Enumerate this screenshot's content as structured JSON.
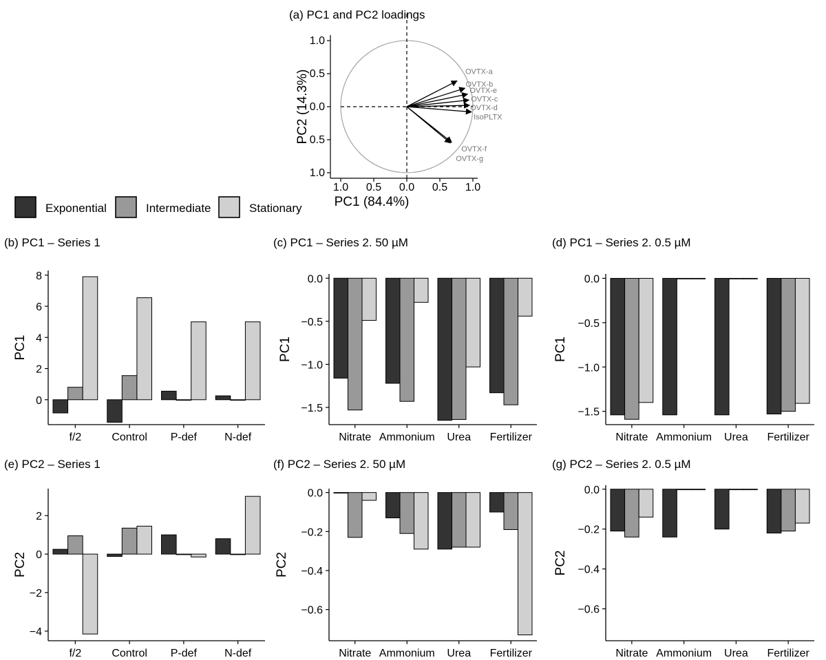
{
  "colors": {
    "exponential": "#333333",
    "intermediate": "#999999",
    "stationary": "#d0d0d0",
    "circle": "#aaaaaa"
  },
  "legend": {
    "placement": "left",
    "entries": [
      "Exponential",
      "Intermediate",
      "Stationary"
    ]
  },
  "chart_data": [
    {
      "id": "a",
      "type": "scatter",
      "title": "(a) PC1 and PC2 loadings",
      "xlabel": "PC1 (84.4%)",
      "ylabel": "PC2 (14.3%)",
      "xlim": [
        -1,
        1
      ],
      "ylim": [
        -1,
        1
      ],
      "xticks": [
        "1.0",
        "0.5",
        "0.0",
        "0.5",
        "1.0"
      ],
      "yticks": [
        "1.0",
        "0.5",
        "0.0",
        "0.5",
        "1.0"
      ],
      "vectors": [
        {
          "name": "OVTX-a",
          "x": 0.76,
          "y": 0.39
        },
        {
          "name": "OVTX-b",
          "x": 0.88,
          "y": 0.28
        },
        {
          "name": "OVTX-e",
          "x": 0.92,
          "y": 0.19
        },
        {
          "name": "OVTX-c",
          "x": 0.94,
          "y": 0.1
        },
        {
          "name": "OVTX-d",
          "x": 0.95,
          "y": 0.02
        },
        {
          "name": "IsoPLTX",
          "x": 0.98,
          "y": -0.08
        },
        {
          "name": "OVTX-f",
          "x": 0.68,
          "y": -0.54
        },
        {
          "name": "OVTX-g",
          "x": 0.66,
          "y": -0.55
        }
      ]
    },
    {
      "id": "b",
      "type": "bar",
      "title": "(b) PC1 – Series 1",
      "ylabel": "PC1",
      "categories": [
        "f/2",
        "Control",
        "P-def",
        "N-def"
      ],
      "ylim": [
        -1.6,
        8.3
      ],
      "yticks": [
        0,
        2,
        4,
        6,
        8
      ],
      "ytick_labels": [
        "0",
        "2",
        "4",
        "6",
        "8"
      ],
      "series": [
        {
          "name": "Exponential",
          "values": [
            -0.85,
            -1.45,
            0.55,
            0.25
          ]
        },
        {
          "name": "Intermediate",
          "values": [
            0.8,
            1.55,
            0,
            0
          ]
        },
        {
          "name": "Stationary",
          "values": [
            7.9,
            6.55,
            5.0,
            5.0
          ]
        }
      ]
    },
    {
      "id": "c",
      "type": "bar",
      "title": "(c) PC1 – Series 2. 50 µM",
      "ylabel": "PC1",
      "categories": [
        "Nitrate",
        "Ammonium",
        "Urea",
        "Fertilizer"
      ],
      "ylim": [
        -1.7,
        0.05
      ],
      "yticks": [
        0,
        -0.5,
        -1,
        -1.5
      ],
      "ytick_labels": [
        "0.0",
        "−0.5",
        "−1.0",
        "−1.5"
      ],
      "series": [
        {
          "name": "Exponential",
          "values": [
            -1.16,
            -1.22,
            -1.65,
            -1.33
          ]
        },
        {
          "name": "Intermediate",
          "values": [
            -1.53,
            -1.43,
            -1.64,
            -1.47
          ]
        },
        {
          "name": "Stationary",
          "values": [
            -0.49,
            -0.28,
            -1.03,
            -0.44
          ]
        }
      ]
    },
    {
      "id": "d",
      "type": "bar",
      "title": "(d) PC1 – Series 2. 0.5 µM",
      "ylabel": "PC1",
      "categories": [
        "Nitrate",
        "Ammonium",
        "Urea",
        "Fertilizer"
      ],
      "ylim": [
        -1.65,
        0.05
      ],
      "yticks": [
        0,
        -0.5,
        -1,
        -1.5
      ],
      "ytick_labels": [
        "0.0",
        "−0.5",
        "−1.0",
        "−1.5"
      ],
      "series": [
        {
          "name": "Exponential",
          "values": [
            -1.54,
            -1.54,
            -1.54,
            -1.53
          ]
        },
        {
          "name": "Intermediate",
          "values": [
            -1.59,
            0,
            0,
            -1.5
          ]
        },
        {
          "name": "Stationary",
          "values": [
            -1.4,
            0,
            0,
            -1.41
          ]
        }
      ]
    },
    {
      "id": "e",
      "type": "bar",
      "title": "(e) PC2 – Series 1",
      "ylabel": "PC2",
      "categories": [
        "f/2",
        "Control",
        "P-def",
        "N-def"
      ],
      "ylim": [
        -4.5,
        3.4
      ],
      "yticks": [
        2,
        0,
        -2,
        -4
      ],
      "ytick_labels": [
        "2",
        "0",
        "−2",
        "−4"
      ],
      "series": [
        {
          "name": "Exponential",
          "values": [
            0.25,
            -0.12,
            1.0,
            0.8
          ]
        },
        {
          "name": "Intermediate",
          "values": [
            0.95,
            1.35,
            0,
            0
          ]
        },
        {
          "name": "Stationary",
          "values": [
            -4.15,
            1.45,
            -0.15,
            3.0
          ]
        }
      ]
    },
    {
      "id": "f",
      "type": "bar",
      "title": "(f) PC2 – Series 2. 50 µM",
      "ylabel": "PC2",
      "categories": [
        "Nitrate",
        "Ammonium",
        "Urea",
        "Fertilizer"
      ],
      "ylim": [
        -0.76,
        0.02
      ],
      "yticks": [
        0,
        -0.2,
        -0.4,
        -0.6
      ],
      "ytick_labels": [
        "0.0",
        "−0.2",
        "−0.4",
        "−0.6"
      ],
      "series": [
        {
          "name": "Exponential",
          "values": [
            0,
            -0.13,
            -0.29,
            -0.1
          ]
        },
        {
          "name": "Intermediate",
          "values": [
            -0.23,
            -0.21,
            -0.28,
            -0.19
          ]
        },
        {
          "name": "Stationary",
          "values": [
            -0.04,
            -0.29,
            -0.28,
            -0.73
          ]
        }
      ]
    },
    {
      "id": "g",
      "type": "bar",
      "title": "(g) PC2 – Series 2. 0.5 µM",
      "ylabel": "PC2",
      "categories": [
        "Nitrate",
        "Ammonium",
        "Urea",
        "Fertilizer"
      ],
      "ylim": [
        -0.76,
        0.02
      ],
      "yticks": [
        0,
        -0.2,
        -0.4,
        -0.6
      ],
      "ytick_labels": [
        "0.0",
        "−0.2",
        "−0.4",
        "−0.6"
      ],
      "series": [
        {
          "name": "Exponential",
          "values": [
            -0.21,
            -0.24,
            -0.2,
            -0.22
          ]
        },
        {
          "name": "Intermediate",
          "values": [
            -0.24,
            0,
            0,
            -0.21
          ]
        },
        {
          "name": "Stationary",
          "values": [
            -0.14,
            0,
            0,
            -0.17
          ]
        }
      ]
    }
  ]
}
